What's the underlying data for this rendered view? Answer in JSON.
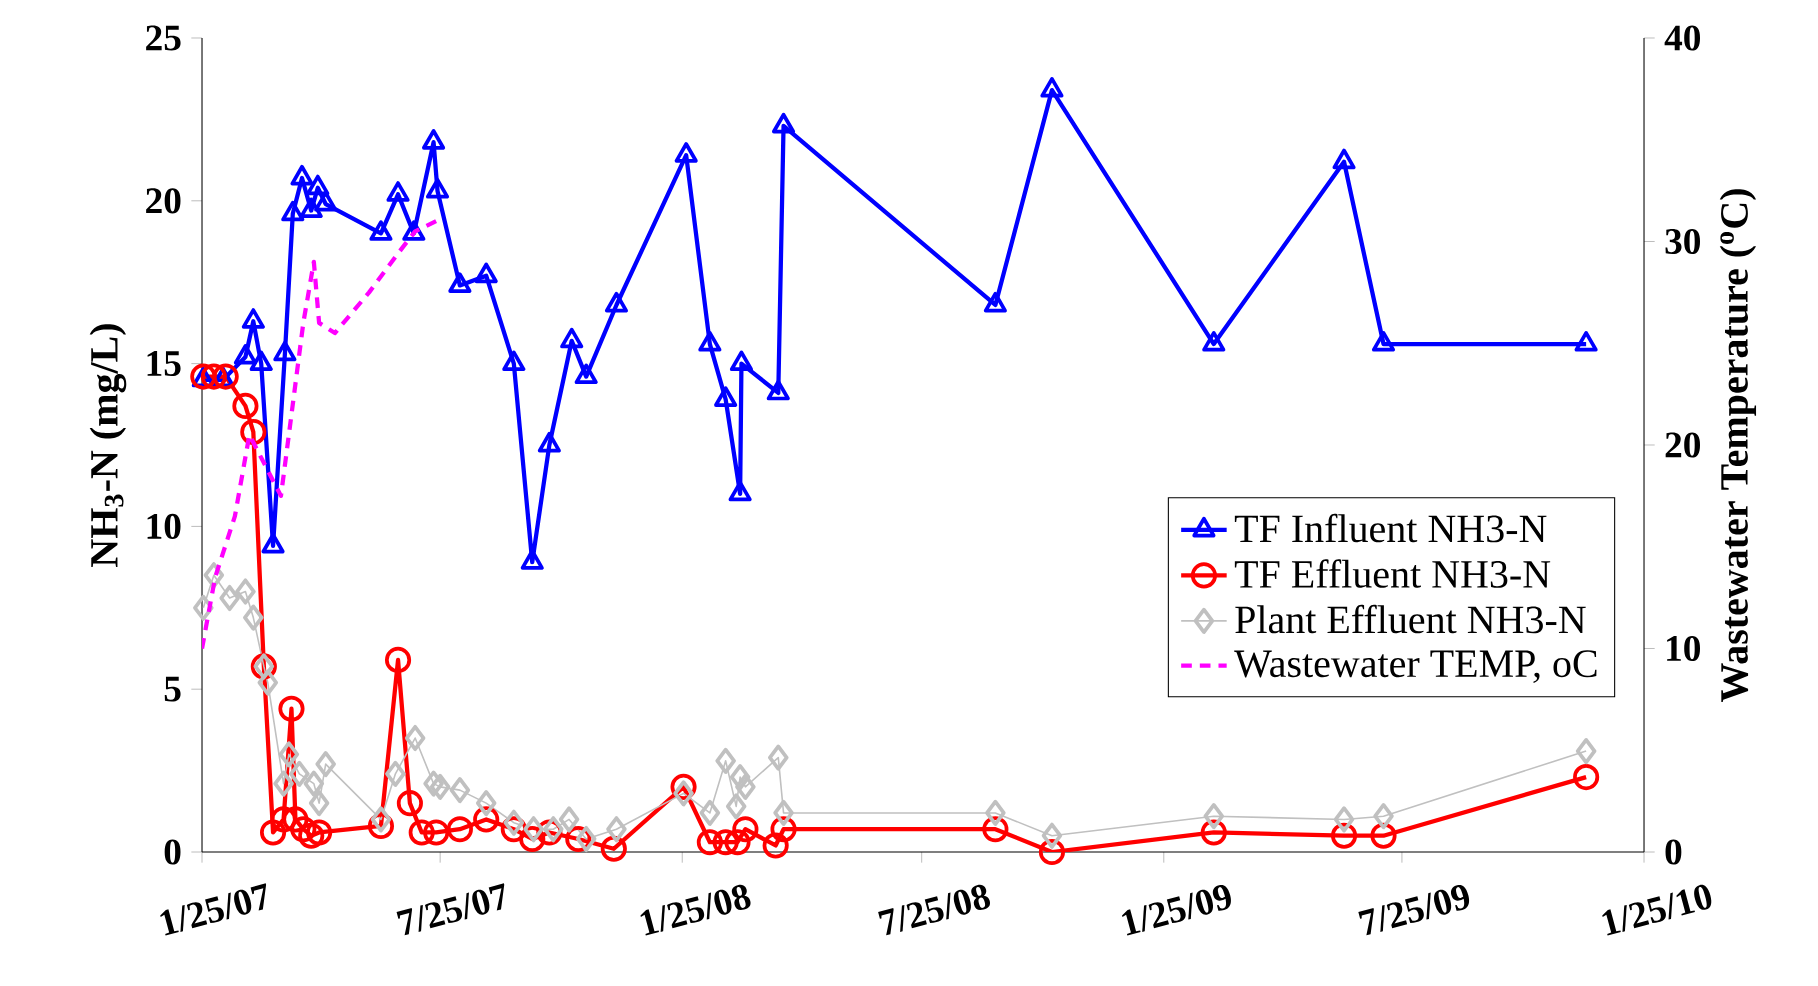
{
  "chart_data": {
    "type": "line",
    "xlabel": null,
    "ylabel": "NH$_{3}$-N (mg/L)",
    "y2label": "Wastewater Temperature ($^{o}$C)",
    "xlim": [
      "2007-01-25",
      "2010-01-25"
    ],
    "xticks": [
      {
        "value": "2007-01-25",
        "label": "1/25/07"
      },
      {
        "value": "2007-07-25",
        "label": "7/25/07"
      },
      {
        "value": "2008-01-25",
        "label": "1/25/08"
      },
      {
        "value": "2008-07-25",
        "label": "7/25/08"
      },
      {
        "value": "2009-01-25",
        "label": "1/25/09"
      },
      {
        "value": "2009-07-25",
        "label": "7/25/09"
      },
      {
        "value": "2010-01-25",
        "label": "1/25/10"
      }
    ],
    "ylim": [
      0,
      25
    ],
    "yticks": [
      0,
      5,
      10,
      15,
      20,
      25
    ],
    "y2lim": [
      0,
      40
    ],
    "y2ticks": [
      0,
      10,
      20,
      30,
      40
    ],
    "legend": "right",
    "series": [
      {
        "name": "TF Influent NH3-N",
        "color": "#0000ff",
        "marker": "triangle",
        "line_style": "solid",
        "x": [
          "2007-01-26",
          "2007-02-10",
          "2007-02-27",
          "2007-03-05",
          "2007-03-11",
          "2007-03-20",
          "2007-03-29",
          "2007-04-04",
          "2007-04-11",
          "2007-04-18",
          "2007-04-23",
          "2007-04-29",
          "2007-06-10",
          "2007-06-23",
          "2007-07-05",
          "2007-07-20",
          "2007-07-23",
          "2007-08-09",
          "2007-08-29",
          "2007-09-19",
          "2007-10-03",
          "2007-10-16",
          "2007-11-02",
          "2007-11-13",
          "2007-12-06",
          "2008-01-28",
          "2008-02-15",
          "2008-02-27",
          "2008-03-09",
          "2008-03-10",
          "2008-04-07",
          "2008-04-11",
          "2008-09-19",
          "2008-11-01",
          "2009-03-04",
          "2009-06-11",
          "2009-07-11",
          "2009-12-12"
        ],
        "values": [
          14.5,
          14.5,
          15.2,
          16.3,
          15.0,
          9.4,
          15.3,
          19.6,
          20.7,
          19.7,
          20.4,
          19.9,
          19.0,
          20.2,
          19.0,
          21.8,
          20.3,
          17.4,
          17.7,
          15.0,
          8.9,
          12.5,
          15.7,
          14.6,
          16.8,
          21.4,
          15.6,
          13.9,
          11.0,
          15.0,
          14.1,
          22.3,
          16.8,
          23.4,
          15.6,
          21.2,
          15.6,
          15.6
        ]
      },
      {
        "name": "TF Effluent NH3-N",
        "color": "#ff0000",
        "marker": "circle",
        "line_style": "solid",
        "x": [
          "2007-01-26",
          "2007-02-03",
          "2007-02-12",
          "2007-02-27",
          "2007-03-05",
          "2007-03-13",
          "2007-03-20",
          "2007-03-28",
          "2007-04-03",
          "2007-04-06",
          "2007-04-12",
          "2007-04-18",
          "2007-04-24",
          "2007-06-10",
          "2007-06-23",
          "2007-07-02",
          "2007-07-11",
          "2007-07-22",
          "2007-08-09",
          "2007-08-29",
          "2007-09-19",
          "2007-10-03",
          "2007-10-16",
          "2007-11-07",
          "2007-12-04",
          "2008-01-26",
          "2008-02-15",
          "2008-02-27",
          "2008-03-07",
          "2008-03-13",
          "2008-04-05",
          "2008-04-11",
          "2008-09-19",
          "2008-11-01",
          "2009-03-04",
          "2009-06-11",
          "2009-07-11",
          "2009-12-12"
        ],
        "values": [
          14.6,
          14.6,
          14.6,
          13.7,
          12.9,
          5.7,
          0.6,
          1.0,
          4.4,
          1.0,
          0.7,
          0.5,
          0.6,
          0.8,
          5.9,
          1.5,
          0.6,
          0.6,
          0.7,
          1.0,
          0.7,
          0.4,
          0.6,
          0.4,
          0.1,
          2.0,
          0.3,
          0.3,
          0.3,
          0.7,
          0.2,
          0.7,
          0.7,
          0.0,
          0.6,
          0.5,
          0.5,
          2.3
        ]
      },
      {
        "name": "Plant Effluent NH3-N",
        "color": "#c0c0c0",
        "marker": "diamond",
        "line_style": "solid",
        "x": [
          "2007-01-26",
          "2007-02-03",
          "2007-02-15",
          "2007-02-27",
          "2007-03-05",
          "2007-03-13",
          "2007-03-16",
          "2007-03-28",
          "2007-04-01",
          "2007-04-09",
          "2007-04-20",
          "2007-04-24",
          "2007-04-29",
          "2007-06-10",
          "2007-06-21",
          "2007-07-06",
          "2007-07-20",
          "2007-07-25",
          "2007-08-09",
          "2007-08-29",
          "2007-09-19",
          "2007-10-04",
          "2007-10-19",
          "2007-10-31",
          "2007-11-13",
          "2007-12-06",
          "2008-01-26",
          "2008-02-15",
          "2008-02-27",
          "2008-03-06",
          "2008-03-09",
          "2008-03-13",
          "2008-04-07",
          "2008-04-11",
          "2008-09-19",
          "2008-11-01",
          "2009-03-04",
          "2009-06-11",
          "2009-07-11",
          "2009-12-12"
        ],
        "values": [
          7.5,
          8.5,
          7.8,
          8.0,
          7.2,
          5.7,
          5.2,
          2.1,
          3.0,
          2.4,
          2.1,
          1.5,
          2.7,
          1.0,
          2.4,
          3.5,
          2.1,
          2.0,
          1.9,
          1.5,
          0.9,
          0.7,
          0.7,
          1.0,
          0.4,
          0.7,
          1.8,
          1.2,
          2.8,
          1.4,
          2.3,
          2.0,
          2.9,
          1.2,
          1.2,
          0.5,
          1.1,
          1.0,
          1.1,
          3.1
        ]
      },
      {
        "name": "Wastewater TEMP, oC",
        "color": "#ff00ff",
        "marker": "none",
        "line_style": "dashed",
        "axis": "y2",
        "x": [
          "2007-01-25",
          "2007-02-04",
          "2007-02-19",
          "2007-03-02",
          "2007-03-14",
          "2007-03-26",
          "2007-04-04",
          "2007-04-12",
          "2007-04-20",
          "2007-04-24",
          "2007-05-06",
          "2007-06-01",
          "2007-06-24",
          "2007-07-06",
          "2007-07-22"
        ],
        "values": [
          10.0,
          13.5,
          16.5,
          20.5,
          19.0,
          17.5,
          22.0,
          26.0,
          29.0,
          26.0,
          25.5,
          27.5,
          29.5,
          30.5,
          31.0
        ]
      }
    ]
  }
}
